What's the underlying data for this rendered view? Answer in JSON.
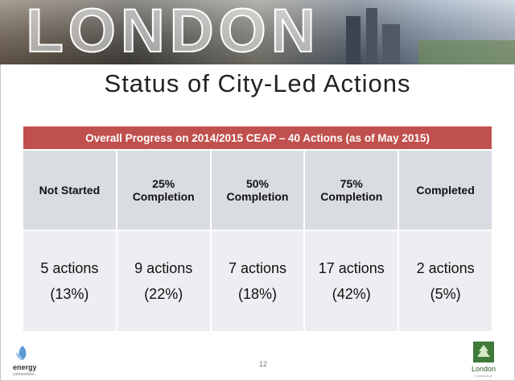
{
  "header": {
    "banner": "LONDON",
    "title": "Status of City-Led Actions"
  },
  "table": {
    "caption": "Overall Progress on 2014/2015 CEAP – 40 Actions (as of May 2015)",
    "columns": [
      "Not Started",
      "25% Completion",
      "50% Completion",
      "75% Completion",
      "Completed"
    ],
    "rows": [
      [
        {
          "count": "5 actions",
          "share": "(13%)"
        },
        {
          "count": "9 actions",
          "share": "(22%)"
        },
        {
          "count": "7 actions",
          "share": "(18%)"
        },
        {
          "count": "17 actions",
          "share": "(42%)"
        },
        {
          "count": "2 actions",
          "share": "(5%)"
        }
      ]
    ]
  },
  "footer": {
    "left_logo": "energy",
    "left_logo_sub": "connections",
    "page_number": "12",
    "right_logo": "London",
    "right_logo_sub": "CANADA"
  }
}
